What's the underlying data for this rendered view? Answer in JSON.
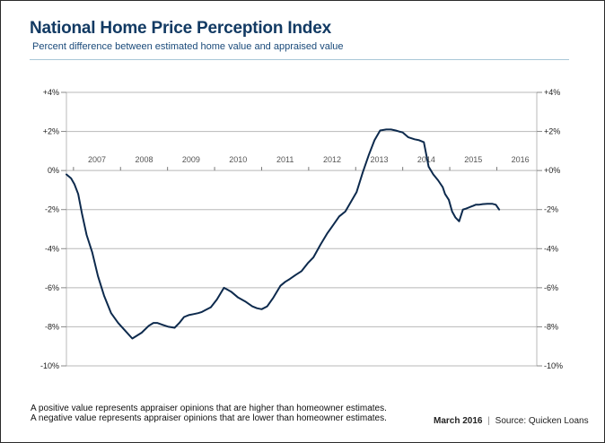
{
  "header": {
    "title": "National Home Price Perception Index",
    "subtitle": "Percent difference between estimated home value and appraised value"
  },
  "footer": {
    "note_positive": "A positive value represents appraiser opinions that are higher than homeowner estimates.",
    "note_negative": "A negative value represents appraiser opinions that are lower than homeowner estimates.",
    "date": "March 2016",
    "separator": "|",
    "source": "Source: Quicken Loans"
  },
  "colors": {
    "line": "#0d2a4d",
    "grid": "#b8b8b8",
    "title": "#123a63"
  },
  "chart_data": {
    "type": "line",
    "title": "National Home Price Perception Index",
    "subtitle": "Percent difference between estimated home value and appraised value",
    "ylim": [
      -10,
      4
    ],
    "y_ticks": [
      4,
      2,
      0,
      -2,
      -4,
      -6,
      -8,
      -10
    ],
    "y_tick_labels_left": [
      "+4%",
      "+2%",
      "0%",
      "-2%",
      "-4%",
      "-6%",
      "-8%",
      "-10%"
    ],
    "y_tick_labels_right": [
      "+4%",
      "+2%",
      "+0%",
      "-2%",
      "-4%",
      "-6%",
      "-8%",
      "-10%"
    ],
    "xlim": [
      2006.45,
      2016.45
    ],
    "year_labels": [
      "2007",
      "2008",
      "2009",
      "2010",
      "2011",
      "2012",
      "2013",
      "2014",
      "2015",
      "2016"
    ],
    "grid": true,
    "series": [
      {
        "name": "Home Price Perception Index",
        "x": [
          2006.45,
          2006.55,
          2006.62,
          2006.7,
          2006.78,
          2006.88,
          2007.0,
          2007.12,
          2007.25,
          2007.4,
          2007.55,
          2007.7,
          2007.85,
          2008.05,
          2008.2,
          2008.3,
          2008.38,
          2008.5,
          2008.62,
          2008.75,
          2008.85,
          2008.95,
          2009.05,
          2009.15,
          2009.25,
          2009.32,
          2009.4,
          2009.52,
          2009.65,
          2009.8,
          2009.95,
          2010.1,
          2010.25,
          2010.4,
          2010.5,
          2010.6,
          2010.72,
          2010.85,
          2011.0,
          2011.1,
          2011.2,
          2011.32,
          2011.45,
          2011.58,
          2011.7,
          2011.85,
          2012.0,
          2012.12,
          2012.25,
          2012.38,
          2012.5,
          2012.62,
          2012.75,
          2012.88,
          2013.0,
          2013.12,
          2013.25,
          2013.35,
          2013.45,
          2013.52,
          2013.6,
          2013.72,
          2013.85,
          2013.95,
          2014.05,
          2014.15,
          2014.25,
          2014.35,
          2014.45,
          2014.5,
          2014.58,
          2014.65,
          2014.72,
          2014.8,
          2014.88,
          2014.95,
          2015.0,
          2015.05,
          2015.1,
          2015.15,
          2015.22,
          2015.3,
          2015.4,
          2015.5,
          2015.58,
          2015.65
        ],
        "values": [
          -0.2,
          -0.4,
          -0.7,
          -1.2,
          -2.2,
          -3.3,
          -4.2,
          -5.4,
          -6.4,
          -7.3,
          -7.8,
          -8.2,
          -8.6,
          -8.3,
          -7.95,
          -7.8,
          -7.8,
          -7.9,
          -8.0,
          -8.05,
          -7.8,
          -7.5,
          -7.4,
          -7.35,
          -7.3,
          -7.25,
          -7.15,
          -7.0,
          -6.6,
          -6.0,
          -6.2,
          -6.5,
          -6.7,
          -6.95,
          -7.05,
          -7.1,
          -6.95,
          -6.5,
          -5.9,
          -5.7,
          -5.55,
          -5.35,
          -5.15,
          -4.75,
          -4.45,
          -3.8,
          -3.2,
          -2.8,
          -2.35,
          -2.1,
          -1.6,
          -1.1,
          -0.1,
          0.8,
          1.55,
          2.05,
          2.1,
          2.1,
          2.05,
          2.0,
          1.95,
          1.7,
          1.6,
          1.55,
          1.45,
          0.2,
          -0.2,
          -0.5,
          -0.85,
          -1.2,
          -1.5,
          -2.1,
          -2.4,
          -2.6,
          -2.0,
          -1.95,
          -1.9,
          -1.85,
          -1.8,
          -1.75,
          -1.75,
          -1.72,
          -1.7,
          -1.7,
          -1.75,
          -2.0
        ]
      }
    ]
  }
}
